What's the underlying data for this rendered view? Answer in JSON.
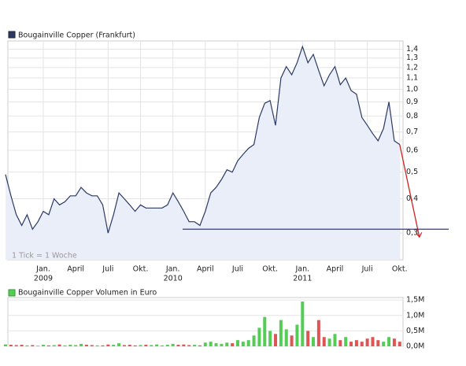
{
  "chart_data": [
    {
      "type": "line",
      "legend": "Bougainville Copper (Frankfurt)",
      "note": "1 Tick = 1 Woche",
      "categories": [
        null,
        null,
        null,
        null,
        null,
        null,
        null,
        "Jan.",
        null,
        null,
        null,
        null,
        null,
        "April",
        null,
        null,
        null,
        null,
        null,
        "Juli",
        null,
        null,
        null,
        null,
        null,
        "Okt.",
        null,
        null,
        null,
        null,
        null,
        "Jan.",
        null,
        null,
        null,
        null,
        null,
        "April",
        null,
        null,
        null,
        null,
        null,
        "Juli",
        null,
        null,
        null,
        null,
        null,
        "Okt.",
        null,
        null,
        null,
        null,
        null,
        "Jan.",
        null,
        null,
        null,
        null,
        null,
        "April",
        null,
        null,
        null,
        null,
        null,
        "Juli",
        null,
        null,
        null,
        null,
        null,
        "Okt."
      ],
      "category_years": [
        null,
        null,
        null,
        null,
        null,
        null,
        null,
        "2009",
        null,
        null,
        null,
        null,
        null,
        null,
        null,
        null,
        null,
        null,
        null,
        null,
        null,
        null,
        null,
        null,
        null,
        null,
        null,
        null,
        null,
        null,
        null,
        "2010",
        null,
        null,
        null,
        null,
        null,
        null,
        null,
        null,
        null,
        null,
        null,
        null,
        null,
        null,
        null,
        null,
        null,
        null,
        null,
        null,
        null,
        null,
        null,
        "2011",
        null,
        null,
        null,
        null,
        null,
        null,
        null,
        null,
        null,
        null,
        null,
        null,
        null,
        null,
        null,
        null,
        null,
        null
      ],
      "series": [
        {
          "name": "Bougainville Copper (Frankfurt)",
          "color": "#2b3a64",
          "fill": "#eaeef8",
          "values": [
            0.49,
            0.41,
            0.35,
            0.32,
            0.35,
            0.31,
            0.33,
            0.36,
            0.35,
            0.4,
            0.38,
            0.39,
            0.41,
            0.41,
            0.44,
            0.42,
            0.41,
            0.41,
            0.38,
            0.3,
            0.35,
            0.42,
            0.4,
            0.38,
            0.36,
            0.38,
            0.37,
            0.37,
            0.37,
            0.37,
            0.38,
            0.42,
            0.39,
            0.36,
            0.33,
            0.33,
            0.32,
            0.36,
            0.42,
            0.44,
            0.47,
            0.51,
            0.5,
            0.55,
            0.58,
            0.61,
            0.63,
            0.79,
            0.89,
            0.91,
            0.74,
            1.1,
            1.21,
            1.13,
            1.25,
            1.43,
            1.25,
            1.34,
            1.17,
            1.03,
            1.13,
            1.21,
            1.04,
            1.1,
            0.99,
            0.96,
            0.79,
            0.74,
            0.69,
            0.65,
            0.72,
            0.9,
            0.65,
            0.63
          ]
        }
      ],
      "support_level": {
        "value": 0.31,
        "color": "#1a237e"
      },
      "trend_target": {
        "value": 0.29,
        "color": "#cc2222"
      },
      "log_scale": true,
      "grid": true,
      "ylim": [
        0.24,
        1.5
      ],
      "yticks": [
        {
          "value": 0.3,
          "label": "0,3"
        },
        {
          "value": 0.4,
          "label": "0,4"
        },
        {
          "value": 0.5,
          "label": "0,5"
        },
        {
          "value": 0.6,
          "label": "0,6"
        },
        {
          "value": 0.7,
          "label": "0,7"
        },
        {
          "value": 0.8,
          "label": "0,8"
        },
        {
          "value": 0.9,
          "label": "0,9"
        },
        {
          "value": 1.0,
          "label": "1,0"
        },
        {
          "value": 1.1,
          "label": "1,1"
        },
        {
          "value": 1.2,
          "label": "1,2"
        },
        {
          "value": 1.3,
          "label": "1,3"
        },
        {
          "value": 1.4,
          "label": "1,4"
        }
      ]
    },
    {
      "type": "bar",
      "legend": "Bougainville Copper Volumen in Euro",
      "legend_color": "#55cc55",
      "up_color": "#55cc55",
      "down_color": "#dd5555",
      "values": [
        60000,
        50000,
        40000,
        50000,
        30000,
        40000,
        20000,
        50000,
        30000,
        40000,
        60000,
        30000,
        50000,
        40000,
        80000,
        50000,
        40000,
        30000,
        30000,
        60000,
        50000,
        100000,
        40000,
        50000,
        30000,
        40000,
        50000,
        40000,
        60000,
        30000,
        50000,
        80000,
        50000,
        60000,
        40000,
        50000,
        30000,
        120000,
        150000,
        100000,
        80000,
        120000,
        100000,
        200000,
        150000,
        200000,
        350000,
        600000,
        950000,
        500000,
        400000,
        850000,
        550000,
        350000,
        700000,
        1450000,
        500000,
        300000,
        850000,
        300000,
        250000,
        400000,
        200000,
        300000,
        150000,
        200000,
        150000,
        250000,
        300000,
        200000,
        150000,
        300000,
        250000,
        150000
      ],
      "grid": true,
      "ylim": [
        0,
        1580000
      ],
      "yticks": [
        {
          "value": 0,
          "label": "0,0M"
        },
        {
          "value": 500000,
          "label": "0,5M"
        },
        {
          "value": 1000000,
          "label": "1,0M"
        },
        {
          "value": 1500000,
          "label": "1,5M"
        }
      ]
    }
  ]
}
